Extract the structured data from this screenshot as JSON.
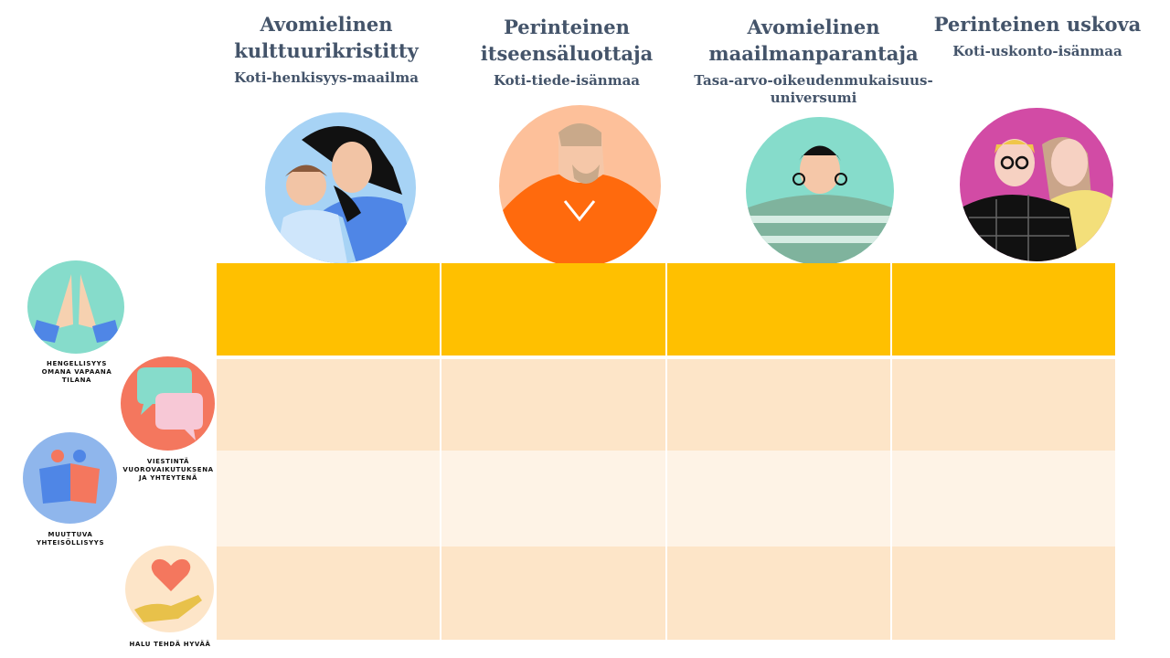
{
  "personas": [
    {
      "title_line1": "Avomielinen",
      "title_line2": "kulttuurikristitty",
      "subtitle_line1": "Koti-henkisyys-maailma",
      "subtitle_line2": ""
    },
    {
      "title_line1": "Perinteinen",
      "title_line2": "itseensäluottaja",
      "subtitle_line1": "Koti-tiede-isänmaa",
      "subtitle_line2": ""
    },
    {
      "title_line1": "Avomielinen",
      "title_line2": "maailmanparantaja",
      "subtitle_line1": "Tasa-arvo-oikeudenmukaisuus-",
      "subtitle_line2": "universumi"
    },
    {
      "title_line1": "Perinteinen uskova",
      "title_line2": "",
      "subtitle_line1": "Koti-uskonto-isänmaa",
      "subtitle_line2": ""
    }
  ],
  "themes": [
    {
      "label_line1": "Hengellisyys",
      "label_line2": "omana vapaana",
      "label_line3": "tilana",
      "icon": "praying-hands-icon"
    },
    {
      "label_line1": "Viestintä",
      "label_line2": "vuorovaikutuksena",
      "label_line3": "ja yhteytenä",
      "icon": "speech-bubbles-icon"
    },
    {
      "label_line1": "Muuttuva",
      "label_line2": "yhteisöllisyys",
      "label_line3": "",
      "icon": "embracing-people-icon"
    },
    {
      "label_line1": "Halu tehdä hyvää",
      "label_line2": "",
      "label_line3": "",
      "icon": "heart-in-hand-icon"
    }
  ],
  "colors": {
    "heading_text": "#44546a",
    "row1": "#ffc000",
    "row2": "#fde5c8",
    "row3": "#fef3e6",
    "row4": "#fde5c8"
  }
}
